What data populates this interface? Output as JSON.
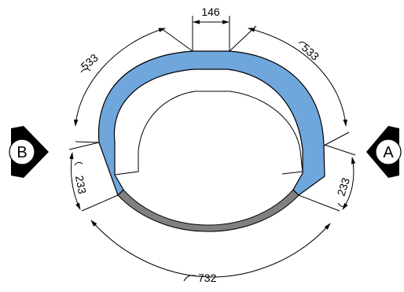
{
  "dimensions": {
    "top_width": "146",
    "arc_upper_left": "533",
    "arc_upper_right": "533",
    "arc_side_left": "233",
    "arc_side_right": "233",
    "arc_bottom": "732"
  },
  "section_markers": {
    "left": "B",
    "right": "A"
  },
  "colors": {
    "shell_fill": "#6fa6dc",
    "bottom_fill": "#808080",
    "line": "#000000",
    "marker_fill": "#000000",
    "background": "#ffffff"
  }
}
